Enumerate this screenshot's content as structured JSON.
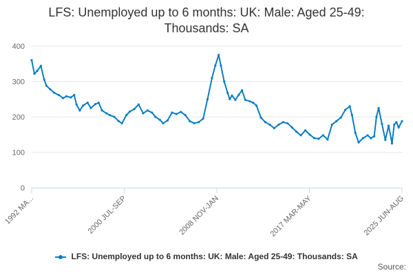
{
  "title": {
    "line1": "LFS: Unemployed up to 6 months: UK: Male: Aged 25-49:",
    "line2": "Thousands: SA"
  },
  "legend": {
    "label": "LFS: Unemployed up to 6 months: UK: Male: Aged 25-49: Thousands: SA"
  },
  "credits": "Source:",
  "colors": {
    "series": "#0a7cc1",
    "grid": "#e6e6e6",
    "text": "#333333",
    "axis": "#666666"
  },
  "chart_data": {
    "type": "line",
    "title": "LFS: Unemployed up to 6 months: UK: Male: Aged 25-49: Thousands: SA",
    "xlabel": "",
    "ylabel": "",
    "ylim": [
      0,
      400
    ],
    "yticks": [
      0,
      100,
      200,
      300,
      400
    ],
    "xlim": [
      1992.17,
      2025.5
    ],
    "xtick_labels": [
      {
        "label": "1992 MA...",
        "x": 1992.17
      },
      {
        "label": "2000 JUL-SEP",
        "x": 2000.5
      },
      {
        "label": "2008 NOV-JAN",
        "x": 2008.83
      },
      {
        "label": "2017 MAR-MAY",
        "x": 2017.17
      },
      {
        "label": "2025 JUN-AUG",
        "x": 2025.5
      }
    ],
    "grid": "horizontal",
    "legend_position": "bottom",
    "series": [
      {
        "name": "LFS: Unemployed up to 6 months: UK: Male: Aged 25-49: Thousands: SA",
        "x": [
          1992.17,
          1992.42,
          1992.67,
          1993.0,
          1993.3,
          1993.5,
          1993.83,
          1994.2,
          1994.6,
          1995.0,
          1995.3,
          1995.7,
          1996.0,
          1996.2,
          1996.5,
          1996.8,
          1997.2,
          1997.5,
          1997.9,
          1998.2,
          1998.5,
          1998.9,
          1999.2,
          1999.6,
          2000.0,
          2000.3,
          2000.7,
          2001.0,
          2001.4,
          2001.8,
          2002.2,
          2002.6,
          2003.0,
          2003.3,
          2003.7,
          2004.0,
          2004.4,
          2004.8,
          2005.2,
          2005.6,
          2006.0,
          2006.4,
          2006.8,
          2007.2,
          2007.6,
          2008.0,
          2008.4,
          2008.7,
          2009.0,
          2009.2,
          2009.5,
          2009.8,
          2010.0,
          2010.2,
          2010.5,
          2010.8,
          2011.1,
          2011.4,
          2011.8,
          2012.1,
          2012.4,
          2012.8,
          2013.2,
          2013.6,
          2014.0,
          2014.4,
          2014.8,
          2015.2,
          2015.6,
          2016.0,
          2016.4,
          2016.8,
          2017.2,
          2017.6,
          2018.0,
          2018.4,
          2018.8,
          2019.2,
          2019.6,
          2020.0,
          2020.4,
          2020.8,
          2021.0,
          2021.3,
          2021.6,
          2022.0,
          2022.4,
          2022.7,
          2023.0,
          2023.2,
          2023.4,
          2023.7,
          2024.0,
          2024.3,
          2024.6,
          2024.8,
          2025.0,
          2025.2,
          2025.5
        ],
        "values": [
          360,
          322,
          330,
          344,
          305,
          288,
          278,
          268,
          262,
          253,
          258,
          255,
          262,
          235,
          218,
          232,
          240,
          225,
          236,
          240,
          218,
          210,
          205,
          200,
          188,
          182,
          205,
          215,
          222,
          235,
          210,
          218,
          212,
          200,
          192,
          182,
          190,
          212,
          208,
          214,
          205,
          188,
          182,
          185,
          195,
          250,
          310,
          345,
          375,
          345,
          300,
          268,
          250,
          260,
          248,
          262,
          275,
          248,
          244,
          240,
          232,
          198,
          185,
          178,
          168,
          178,
          185,
          182,
          170,
          158,
          148,
          162,
          150,
          140,
          138,
          148,
          136,
          178,
          188,
          198,
          220,
          230,
          205,
          155,
          128,
          140,
          148,
          140,
          145,
          200,
          225,
          180,
          135,
          175,
          125,
          178,
          185,
          170,
          188
        ]
      }
    ]
  }
}
